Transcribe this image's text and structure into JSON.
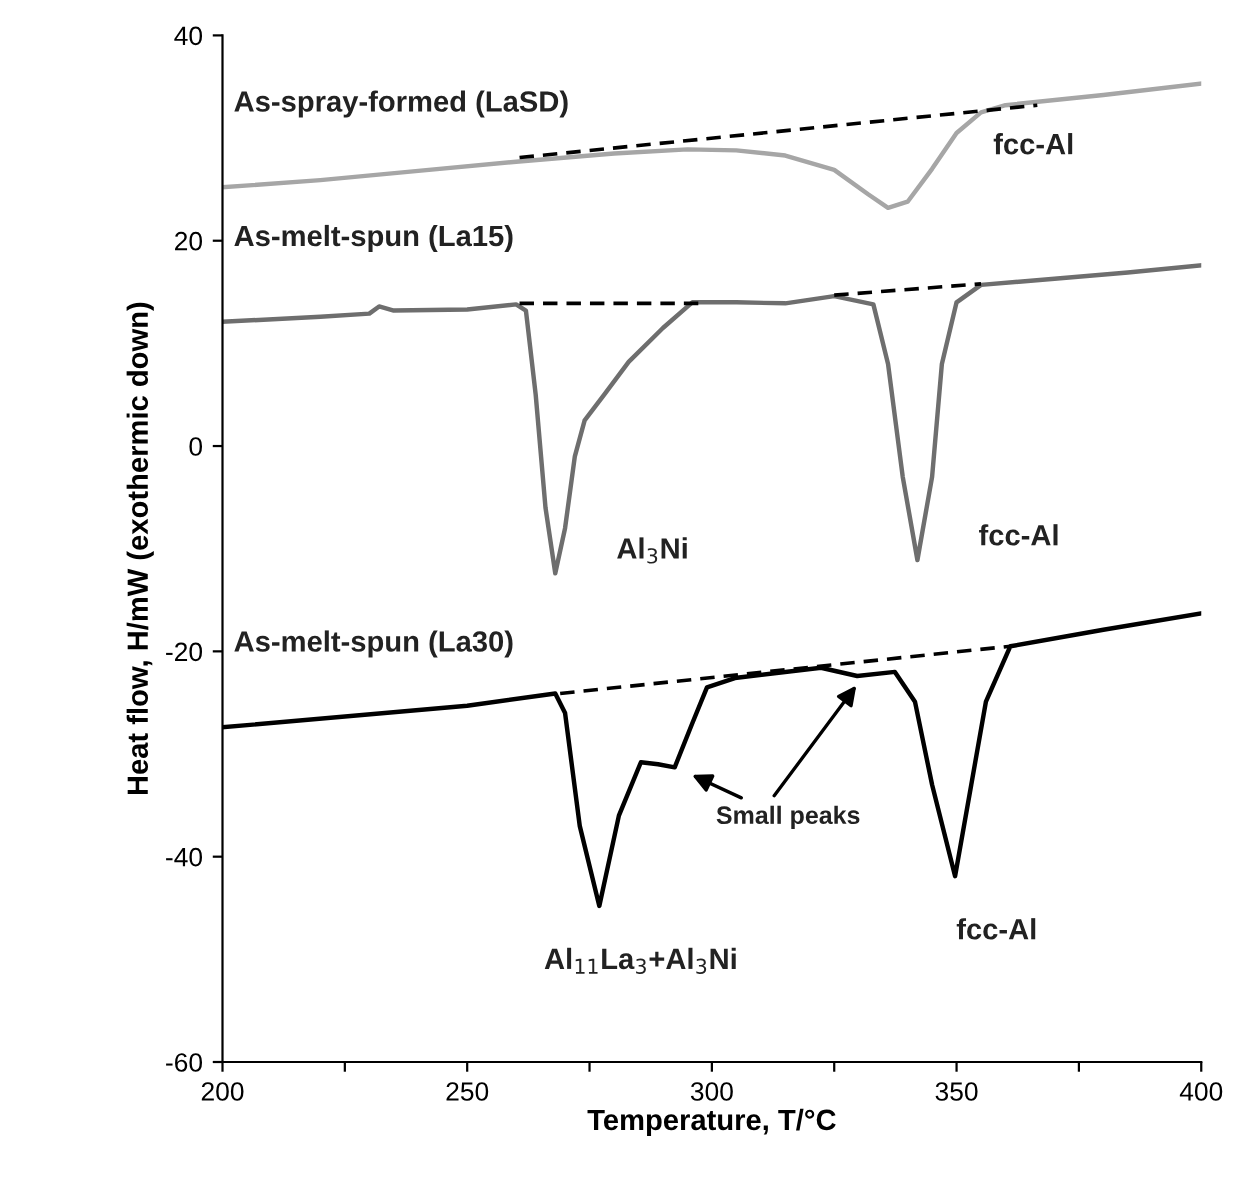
{
  "chart_data": {
    "type": "line",
    "xlabel": "Temperature, T/°C",
    "ylabel": "Heat flow, H/mW (exothermic down)",
    "xlim": [
      200,
      400
    ],
    "ylim": [
      -60,
      40
    ],
    "xticks": [
      200,
      {
        "value": 225,
        "label": null
      },
      250,
      {
        "value": 275,
        "label": null
      },
      300,
      {
        "value": 325,
        "label": null
      },
      350,
      {
        "value": 375,
        "label": null
      },
      400
    ],
    "yticks": [
      -60,
      -40,
      -20,
      0,
      20,
      40
    ],
    "grid": false,
    "legend": false,
    "line_style": "solid",
    "series": [
      {
        "color": "#a6a6a6",
        "x": [
          200,
          220,
          240,
          260,
          280,
          295,
          305,
          315,
          325,
          332,
          336,
          340,
          345,
          350,
          355,
          360,
          380,
          400
        ],
        "values": [
          25.2,
          25.9,
          26.8,
          27.7,
          28.5,
          28.9,
          28.8,
          28.3,
          26.9,
          24.5,
          23.2,
          23.8,
          27,
          30.5,
          32.5,
          33.2,
          34.2,
          35.3
        ]
      },
      {
        "color": "#6e6e6e",
        "x": [
          200,
          220,
          230,
          232,
          235,
          250,
          260,
          262,
          264,
          266,
          268,
          270,
          272,
          274,
          278,
          283,
          290,
          296,
          305,
          315,
          325,
          333,
          336,
          339,
          342,
          345,
          347,
          350,
          355,
          370,
          385,
          400
        ],
        "values": [
          12.1,
          12.6,
          12.9,
          13.6,
          13.2,
          13.3,
          13.8,
          13.2,
          5,
          -6,
          -12.4,
          -8,
          -1,
          2.5,
          5,
          8.2,
          11.5,
          14.0,
          14.0,
          13.9,
          14.6,
          13.8,
          8,
          -3,
          -11.1,
          -3,
          8,
          14.0,
          15.7,
          16.3,
          16.9,
          17.6
        ]
      },
      {
        "color": "#000000",
        "x": [
          200,
          250,
          268,
          270,
          273,
          277,
          281,
          285.5,
          289,
          292.4,
          296,
          299,
          304.7,
          322.3,
          329.7,
          337.4,
          341.5,
          345,
          349.7,
          353,
          356,
          361,
          380,
          400
        ],
        "values": [
          -27.4,
          -25.3,
          -24.1,
          -26,
          -37,
          -44.8,
          -36,
          -30.8,
          -31.0,
          -31.3,
          -27,
          -23.5,
          -22.6,
          -21.6,
          -22.4,
          -22.0,
          -24.9,
          -33,
          -41.9,
          -33,
          -24.9,
          -19.5,
          -17.9,
          -16.3
        ]
      },
      {
        "color": "#000000",
        "line_style": "dashed",
        "x": [
          260.7,
          366.5
        ],
        "values": [
          28.1,
          33.2
        ]
      },
      {
        "color": "#000000",
        "line_style": "dashed",
        "x": [
          260.7,
          297.7
        ],
        "values": [
          13.9,
          13.9
        ]
      },
      {
        "color": "#000000",
        "line_style": "dashed",
        "x": [
          325,
          355
        ],
        "values": [
          14.7,
          15.8
        ]
      },
      {
        "color": "#000000",
        "line_style": "dashed",
        "x": [
          269,
          361
        ],
        "values": [
          -24.1,
          -19.5
        ]
      }
    ],
    "annotations": [
      {
        "text": "As-spray-formed (LaSD)",
        "x": 200,
        "y": 25.2
      },
      {
        "text": "fcc-Al",
        "x": 345,
        "y": 27
      },
      {
        "text": "As-melt-spun (La15)",
        "x": 200,
        "y": 12.1
      },
      {
        "text": "As-melt-spun (La30)",
        "x": 200,
        "y": -27.4
      },
      {
        "text": "Al$_{3}$Ni",
        "x": 268,
        "y": -12.4
      },
      {
        "text": "fcc-Al",
        "x": 342,
        "y": -11.1
      },
      {
        "text": "Al$_{11}$La$_{3}$+Al$_{3}$Ni",
        "x": 277,
        "y": -44.8
      },
      {
        "text": "fcc-Al",
        "x": 349.7,
        "y": -41.9
      },
      "Small peaks"
    ]
  }
}
